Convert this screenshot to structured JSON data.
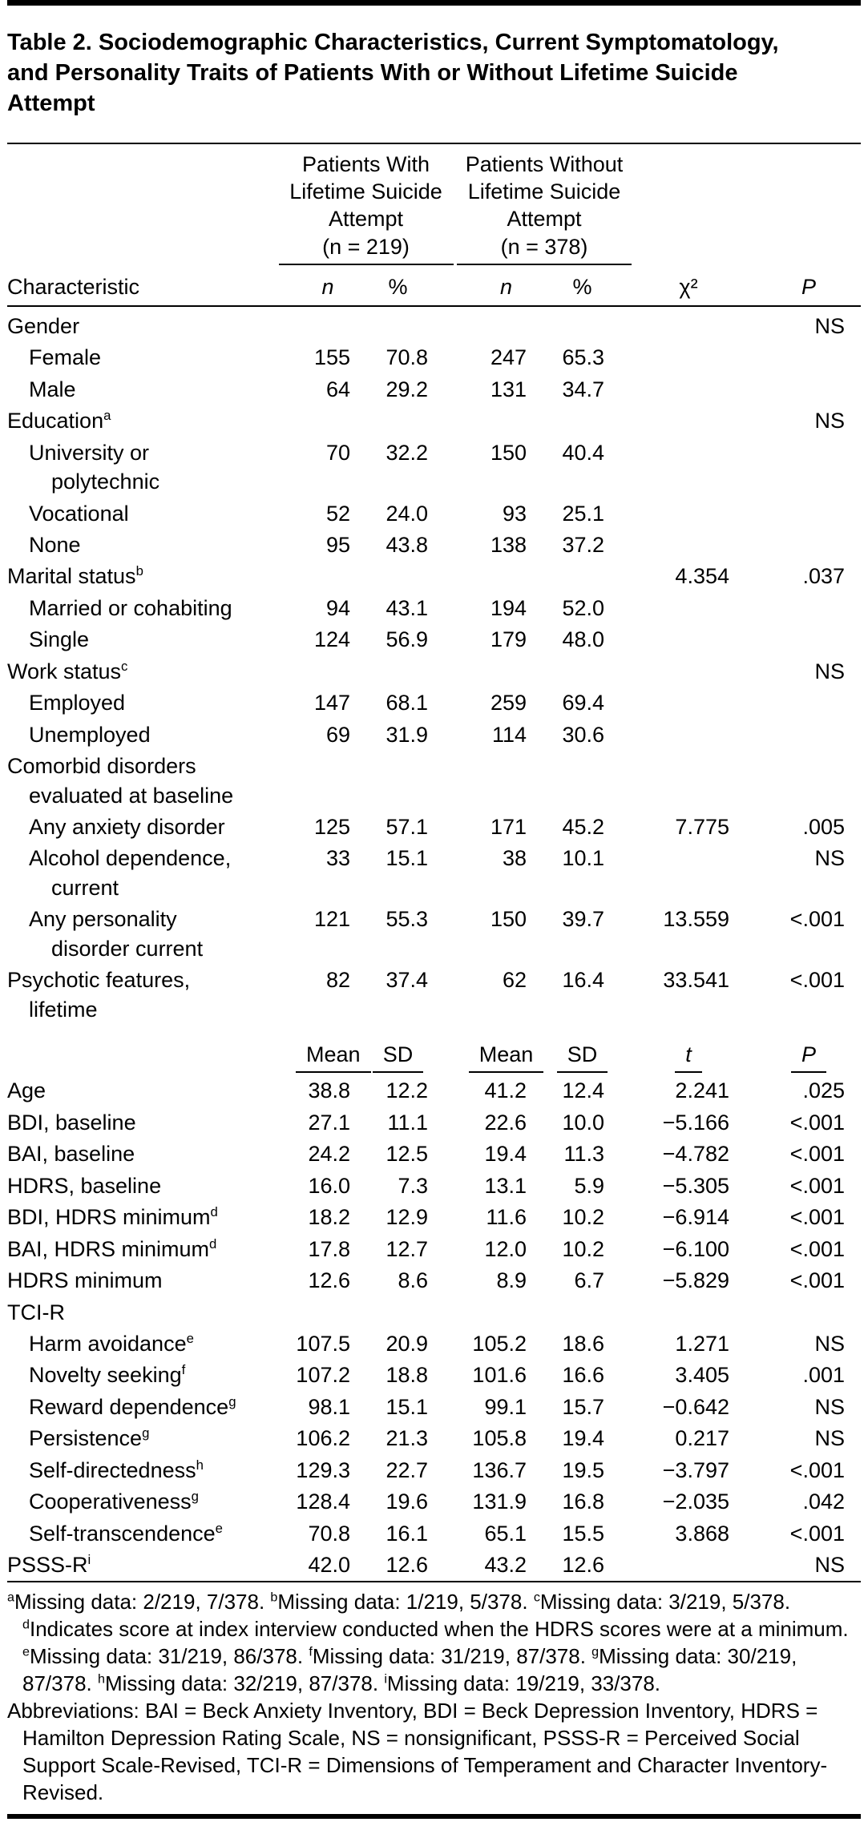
{
  "title": "Table 2. Sociodemographic Characteristics, Current Symptomatology, and Personality Traits of Patients With or Without Lifetime Suicide Attempt",
  "table": {
    "groups": [
      {
        "label": "Patients With\nLifetime Suicide\nAttempt",
        "n_label": "(n = 219)"
      },
      {
        "label": "Patients Without\nLifetime Suicide\nAttempt",
        "n_label": "(n = 378)"
      }
    ],
    "col_headers": {
      "characteristic": "Characteristic",
      "n1": "n",
      "pct1": "%",
      "n2": "n",
      "pct2": "%",
      "chi2": "χ²",
      "p": "P"
    },
    "stat_headers": {
      "mean1": "Mean",
      "sd1": "SD",
      "mean2": "Mean",
      "sd2": "SD",
      "t": "t",
      "p": "P"
    },
    "section1_rows": [
      {
        "label": "Gender",
        "indent": 0,
        "values": [
          "",
          "",
          "",
          "",
          "",
          "NS"
        ]
      },
      {
        "label": "Female",
        "indent": 1,
        "values": [
          "155",
          "70.8",
          "247",
          "65.3",
          "",
          ""
        ]
      },
      {
        "label": "Male",
        "indent": 1,
        "values": [
          "64",
          "29.2",
          "131",
          "34.7",
          "",
          ""
        ]
      },
      {
        "label": "Education",
        "sup": "a",
        "indent": 0,
        "values": [
          "",
          "",
          "",
          "",
          "",
          "NS"
        ]
      },
      {
        "label": "University or\npolytechnic",
        "indent": 1,
        "values": [
          "70",
          "32.2",
          "150",
          "40.4",
          "",
          ""
        ]
      },
      {
        "label": "Vocational",
        "indent": 1,
        "values": [
          "52",
          "24.0",
          "93",
          "25.1",
          "",
          ""
        ]
      },
      {
        "label": "None",
        "indent": 1,
        "values": [
          "95",
          "43.8",
          "138",
          "37.2",
          "",
          ""
        ]
      },
      {
        "label": "Marital status",
        "sup": "b",
        "indent": 0,
        "values": [
          "",
          "",
          "",
          "",
          "4.354",
          ".037"
        ]
      },
      {
        "label": "Married or cohabiting",
        "indent": 1,
        "values": [
          "94",
          "43.1",
          "194",
          "52.0",
          "",
          ""
        ]
      },
      {
        "label": "Single",
        "indent": 1,
        "values": [
          "124",
          "56.9",
          "179",
          "48.0",
          "",
          ""
        ]
      },
      {
        "label": "Work status",
        "sup": "c",
        "indent": 0,
        "values": [
          "",
          "",
          "",
          "",
          "",
          "NS"
        ]
      },
      {
        "label": "Employed",
        "indent": 1,
        "values": [
          "147",
          "68.1",
          "259",
          "69.4",
          "",
          ""
        ]
      },
      {
        "label": "Unemployed",
        "indent": 1,
        "values": [
          "69",
          "31.9",
          "114",
          "30.6",
          "",
          ""
        ]
      },
      {
        "label": "Comorbid disorders\nevaluated at baseline",
        "indent": 0,
        "values": [
          "",
          "",
          "",
          "",
          "",
          ""
        ]
      },
      {
        "label": "Any anxiety disorder",
        "indent": 1,
        "values": [
          "125",
          "57.1",
          "171",
          "45.2",
          "7.775",
          ".005"
        ]
      },
      {
        "label": "Alcohol dependence,\ncurrent",
        "indent": 1,
        "values": [
          "33",
          "15.1",
          "38",
          "10.1",
          "",
          "NS"
        ]
      },
      {
        "label": "Any personality\ndisorder current",
        "indent": 1,
        "values": [
          "121",
          "55.3",
          "150",
          "39.7",
          "13.559",
          "<.001"
        ]
      },
      {
        "label": "Psychotic features,\nlifetime",
        "indent": 0,
        "values": [
          "82",
          "37.4",
          "62",
          "16.4",
          "33.541",
          "<.001"
        ]
      }
    ],
    "section2_rows": [
      {
        "label": "Age",
        "indent": 0,
        "values": [
          "38.8",
          "12.2",
          "41.2",
          "12.4",
          "2.241",
          ".025"
        ]
      },
      {
        "label": "BDI, baseline",
        "indent": 0,
        "values": [
          "27.1",
          "11.1",
          "22.6",
          "10.0",
          "−5.166",
          "<.001"
        ]
      },
      {
        "label": "BAI, baseline",
        "indent": 0,
        "values": [
          "24.2",
          "12.5",
          "19.4",
          "11.3",
          "−4.782",
          "<.001"
        ]
      },
      {
        "label": "HDRS, baseline",
        "indent": 0,
        "values": [
          "16.0",
          "7.3",
          "13.1",
          "5.9",
          "−5.305",
          "<.001"
        ]
      },
      {
        "label": "BDI, HDRS minimum",
        "sup": "d",
        "indent": 0,
        "values": [
          "18.2",
          "12.9",
          "11.6",
          "10.2",
          "−6.914",
          "<.001"
        ]
      },
      {
        "label": "BAI, HDRS minimum",
        "sup": "d",
        "indent": 0,
        "values": [
          "17.8",
          "12.7",
          "12.0",
          "10.2",
          "−6.100",
          "<.001"
        ]
      },
      {
        "label": "HDRS minimum",
        "indent": 0,
        "values": [
          "12.6",
          "8.6",
          "8.9",
          "6.7",
          "−5.829",
          "<.001"
        ]
      },
      {
        "label": "TCI-R",
        "indent": 0,
        "values": [
          "",
          "",
          "",
          "",
          "",
          ""
        ]
      },
      {
        "label": "Harm avoidance",
        "sup": "e",
        "indent": 1,
        "values": [
          "107.5",
          "20.9",
          "105.2",
          "18.6",
          "1.271",
          "NS"
        ]
      },
      {
        "label": "Novelty seeking",
        "sup": "f",
        "indent": 1,
        "values": [
          "107.2",
          "18.8",
          "101.6",
          "16.6",
          "3.405",
          ".001"
        ]
      },
      {
        "label": "Reward dependence",
        "sup": "g",
        "indent": 1,
        "values": [
          "98.1",
          "15.1",
          "99.1",
          "15.7",
          "−0.642",
          "NS"
        ]
      },
      {
        "label": "Persistence",
        "sup": "g",
        "indent": 1,
        "values": [
          "106.2",
          "21.3",
          "105.8",
          "19.4",
          "0.217",
          "NS"
        ]
      },
      {
        "label": "Self-directedness",
        "sup": "h",
        "indent": 1,
        "values": [
          "129.3",
          "22.7",
          "136.7",
          "19.5",
          "−3.797",
          "<.001"
        ]
      },
      {
        "label": "Cooperativeness",
        "sup": "g",
        "indent": 1,
        "values": [
          "128.4",
          "19.6",
          "131.9",
          "16.8",
          "−2.035",
          ".042"
        ]
      },
      {
        "label": "Self-transcendence",
        "sup": "e",
        "indent": 1,
        "values": [
          "70.8",
          "16.1",
          "65.1",
          "15.5",
          "3.868",
          "<.001"
        ]
      },
      {
        "label": "PSSS-R",
        "sup": "i",
        "indent": 0,
        "values": [
          "42.0",
          "12.6",
          "43.2",
          "12.6",
          "",
          "NS"
        ]
      }
    ]
  },
  "footnotes": {
    "items": [
      {
        "sup": "a",
        "text": "Missing data: 2/219, 7/378. "
      },
      {
        "sup": "b",
        "text": "Missing data: 1/219, 5/378. "
      },
      {
        "sup": "c",
        "text": "Missing data: 3/219, 5/378. "
      },
      {
        "sup": "d",
        "text": "Indicates score at index interview conducted when the HDRS scores were at a minimum. "
      },
      {
        "sup": "e",
        "text": "Missing data: 31/219, 86/378. "
      },
      {
        "sup": "f",
        "text": "Missing data: 31/219, 87/378. "
      },
      {
        "sup": "g",
        "text": "Missing data: 30/219, 87/378. "
      },
      {
        "sup": "h",
        "text": "Missing data: 32/219, 87/378. "
      },
      {
        "sup": "i",
        "text": "Missing data: 19/219, 33/378."
      }
    ],
    "abbreviations": "Abbreviations: BAI = Beck Anxiety Inventory, BDI = Beck Depression Inventory, HDRS = Hamilton Depression Rating Scale, NS = nonsignificant, PSSS-R = Perceived Social Support Scale-Revised, TCI-R = Dimensions of Temperament and Character Inventory-Revised."
  }
}
